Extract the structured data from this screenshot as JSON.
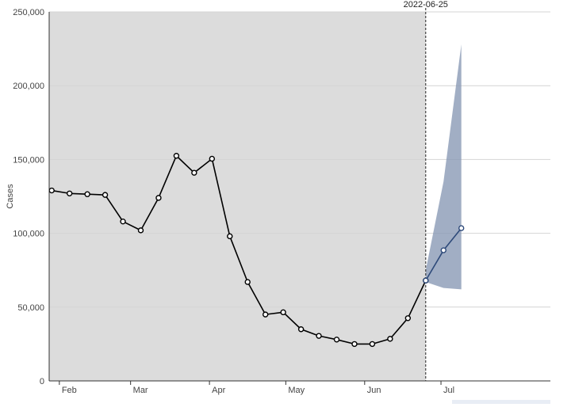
{
  "chart_data": {
    "type": "line",
    "ylabel": "Cases",
    "xlabel": "",
    "ylim": [
      0,
      250000
    ],
    "yticks": [
      0,
      50000,
      100000,
      150000,
      200000,
      250000
    ],
    "ytick_labels": [
      "0",
      "50,000",
      "100,000",
      "150,000",
      "200,000",
      "250,000"
    ],
    "xlim": [
      "2022-01-28",
      "2022-08-13"
    ],
    "xticks": [
      "2022-02-01",
      "2022-03-01",
      "2022-04-01",
      "2022-05-01",
      "2022-06-01",
      "2022-07-01"
    ],
    "xtick_labels": [
      "Feb",
      "Mar",
      "Apr",
      "May",
      "Jun",
      "Jul"
    ],
    "grid": true,
    "observed_region": {
      "start": "2022-01-28",
      "end": "2022-06-25"
    },
    "marker": {
      "date": "2022-06-25",
      "label": "2022-06-25"
    },
    "series": [
      {
        "name": "",
        "color": "#000000",
        "points": [
          {
            "x": "2022-01-29",
            "y": 129000
          },
          {
            "x": "2022-02-05",
            "y": 127000
          },
          {
            "x": "2022-02-12",
            "y": 126500
          },
          {
            "x": "2022-02-19",
            "y": 126000
          },
          {
            "x": "2022-02-26",
            "y": 108000
          },
          {
            "x": "2022-03-05",
            "y": 102000
          },
          {
            "x": "2022-03-12",
            "y": 124000
          },
          {
            "x": "2022-03-19",
            "y": 152500
          },
          {
            "x": "2022-03-26",
            "y": 141000
          },
          {
            "x": "2022-04-02",
            "y": 150500
          },
          {
            "x": "2022-04-09",
            "y": 98000
          },
          {
            "x": "2022-04-16",
            "y": 67000
          },
          {
            "x": "2022-04-23",
            "y": 45000
          },
          {
            "x": "2022-04-30",
            "y": 46500
          },
          {
            "x": "2022-05-07",
            "y": 35000
          },
          {
            "x": "2022-05-14",
            "y": 30500
          },
          {
            "x": "2022-05-21",
            "y": 28000
          },
          {
            "x": "2022-05-28",
            "y": 25000
          },
          {
            "x": "2022-06-04",
            "y": 25000
          },
          {
            "x": "2022-06-11",
            "y": 28500
          },
          {
            "x": "2022-06-18",
            "y": 42500
          },
          {
            "x": "2022-06-25",
            "y": 68000
          }
        ]
      },
      {
        "name": "",
        "color": "#2e4a7a",
        "points": [
          {
            "x": "2022-06-25",
            "y": 68000
          },
          {
            "x": "2022-07-02",
            "y": 88500
          },
          {
            "x": "2022-07-09",
            "y": 103500
          }
        ]
      }
    ],
    "interval": {
      "color": "#8a9ab5",
      "points": [
        {
          "x": "2022-06-25",
          "low": 67000,
          "high": 75000
        },
        {
          "x": "2022-07-02",
          "low": 63000,
          "high": 135000
        },
        {
          "x": "2022-07-09",
          "low": 62000,
          "high": 228000
        }
      ]
    }
  }
}
